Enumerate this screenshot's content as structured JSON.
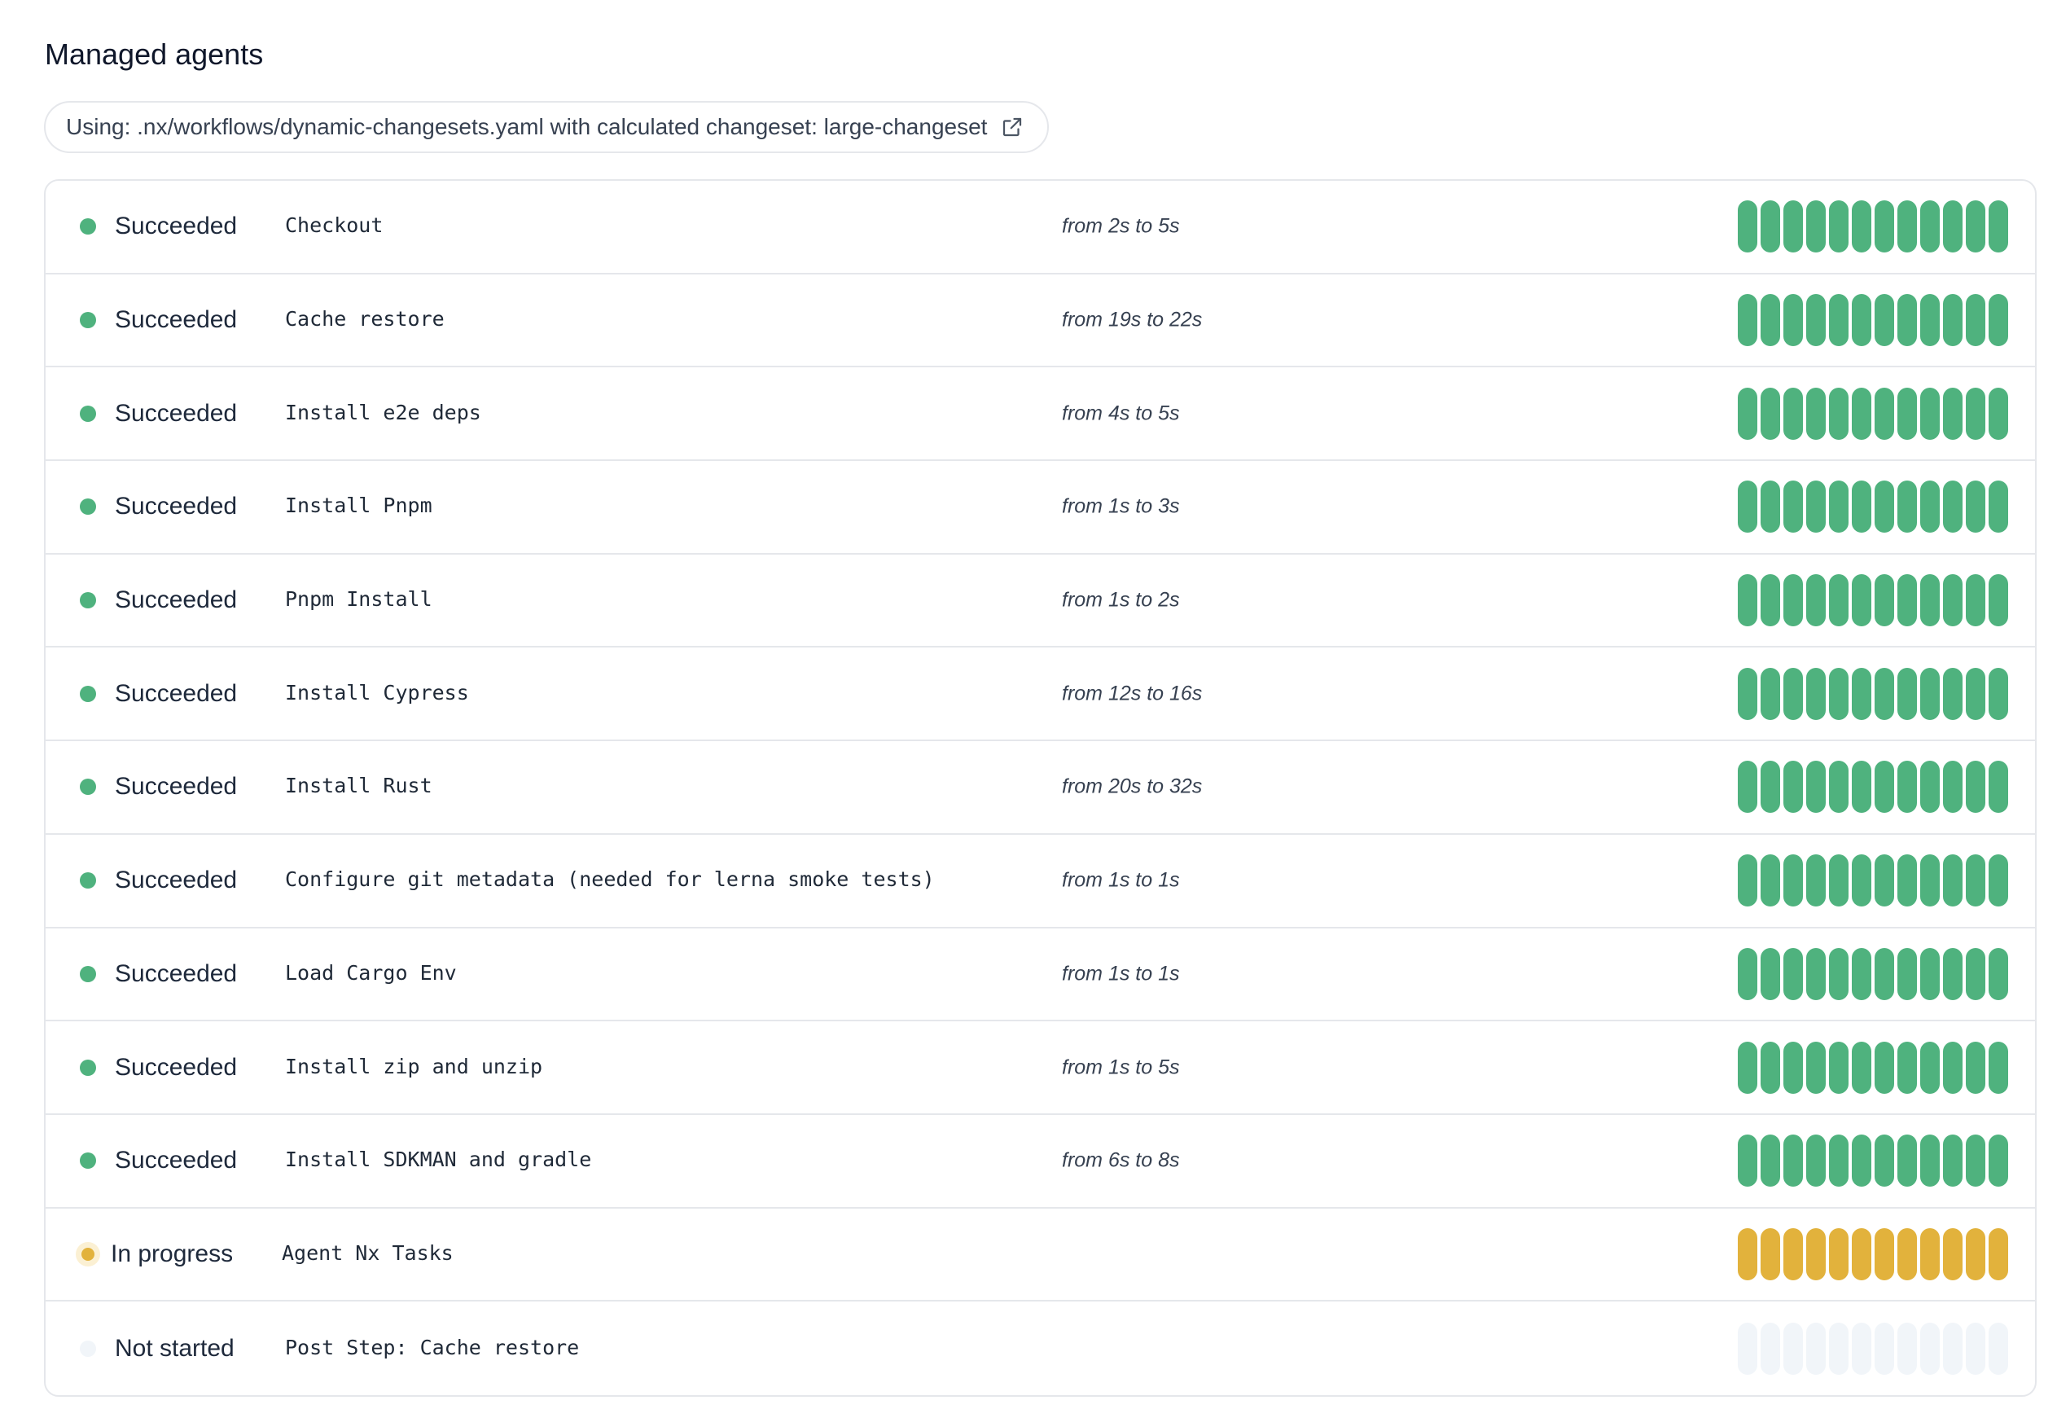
{
  "title": "Managed agents",
  "workflow_note": "Using: .nx/workflows/dynamic-changesets.yaml with calculated changeset: large-changeset",
  "colors": {
    "succeeded": "#4fb27e",
    "in_progress": "#e2b23c",
    "not_started": "#f1f5f9"
  },
  "steps": [
    {
      "status": "Succeeded",
      "state": "s",
      "name": "Checkout",
      "duration": "from 2s to 5s"
    },
    {
      "status": "Succeeded",
      "state": "s",
      "name": "Cache restore",
      "duration": "from 19s to 22s"
    },
    {
      "status": "Succeeded",
      "state": "s",
      "name": "Install e2e deps",
      "duration": "from 4s to 5s"
    },
    {
      "status": "Succeeded",
      "state": "s",
      "name": "Install Pnpm",
      "duration": "from 1s to 3s"
    },
    {
      "status": "Succeeded",
      "state": "s",
      "name": "Pnpm Install",
      "duration": "from 1s to 2s"
    },
    {
      "status": "Succeeded",
      "state": "s",
      "name": "Install Cypress",
      "duration": "from 12s to 16s"
    },
    {
      "status": "Succeeded",
      "state": "s",
      "name": "Install Rust",
      "duration": "from 20s to 32s"
    },
    {
      "status": "Succeeded",
      "state": "s",
      "name": "Configure git metadata (needed for lerna smoke tests)",
      "duration": "from 1s to 1s"
    },
    {
      "status": "Succeeded",
      "state": "s",
      "name": "Load Cargo Env",
      "duration": "from 1s to 1s"
    },
    {
      "status": "Succeeded",
      "state": "s",
      "name": "Install zip and unzip",
      "duration": "from 1s to 5s"
    },
    {
      "status": "Succeeded",
      "state": "s",
      "name": "Install SDKMAN and gradle",
      "duration": "from 6s to 8s"
    },
    {
      "status": "In progress",
      "state": "p",
      "name": "Agent Nx Tasks",
      "duration": ""
    },
    {
      "status": "Not started",
      "state": "n",
      "name": "Post Step: Cache restore",
      "duration": ""
    }
  ],
  "agents_per_step": 12
}
